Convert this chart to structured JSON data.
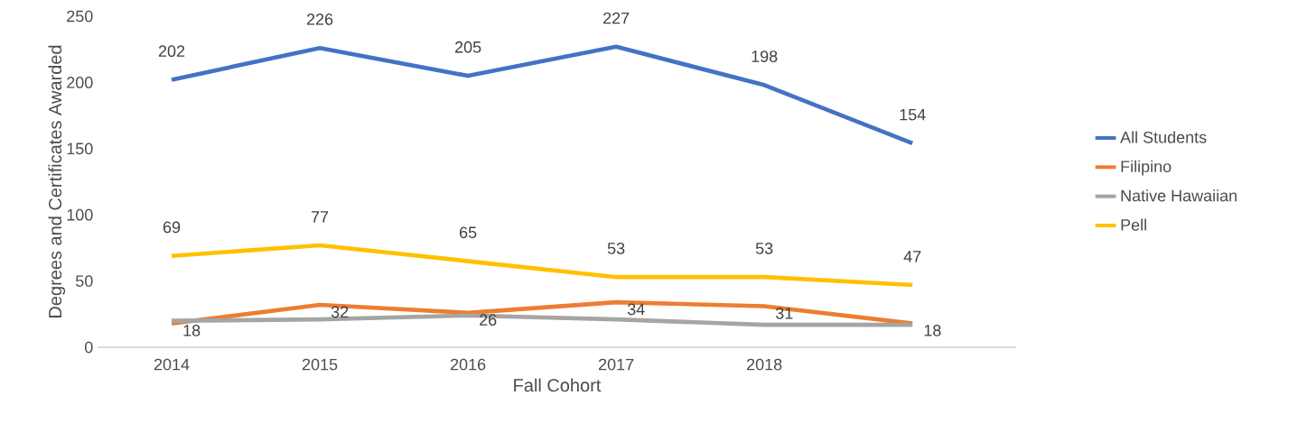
{
  "chart_data": {
    "type": "line",
    "xlabel": "Fall Cohort",
    "ylabel": "Degrees and Certificates Awarded",
    "categories": [
      "2014",
      "2015",
      "2016",
      "2017",
      "2018",
      null
    ],
    "series": [
      {
        "name": "All Students",
        "color": "#4472c4",
        "values": [
          202,
          226,
          205,
          227,
          198,
          154
        ],
        "value_labels": [
          "202",
          "226",
          "205",
          "227",
          "198",
          "154"
        ]
      },
      {
        "name": "Filipino",
        "color": "#ed7d31",
        "values": [
          18,
          32,
          26,
          34,
          31,
          18
        ],
        "value_labels": [
          "18",
          "32",
          "26",
          "34",
          "31",
          "18"
        ]
      },
      {
        "name": "Native Hawaiian",
        "color": "#a5a5a5",
        "values": [
          20,
          21,
          24,
          21,
          17,
          17
        ]
      },
      {
        "name": "Pell",
        "color": "#ffc000",
        "values": [
          69,
          77,
          65,
          53,
          53,
          47
        ],
        "value_labels": [
          "69",
          "77",
          "65",
          "53",
          "53",
          "47"
        ]
      }
    ],
    "ylim": [
      0,
      250
    ],
    "yticks": [
      0,
      50,
      100,
      150,
      200,
      250
    ],
    "grid": false,
    "legend": "right",
    "marker": "none",
    "line_style": "solid"
  }
}
